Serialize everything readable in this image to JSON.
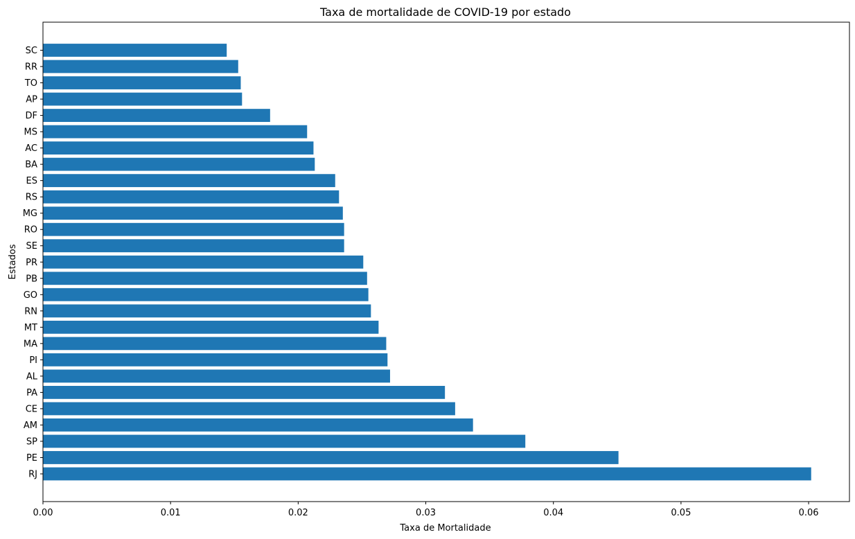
{
  "chart_data": {
    "type": "bar",
    "orientation": "horizontal",
    "title": "Taxa de mortalidade de COVID-19 por estado",
    "xlabel": "Taxa de Mortalidade",
    "ylabel": "Estados",
    "xlim": [
      0,
      0.0632
    ],
    "xticks": [
      "0.00",
      "0.01",
      "0.02",
      "0.03",
      "0.04",
      "0.05",
      "0.06"
    ],
    "bar_color": "#1f77b4",
    "grid": false,
    "categories": [
      "RJ",
      "PE",
      "SP",
      "AM",
      "CE",
      "PA",
      "AL",
      "PI",
      "MA",
      "MT",
      "RN",
      "GO",
      "PB",
      "PR",
      "SE",
      "RO",
      "MG",
      "RS",
      "ES",
      "BA",
      "AC",
      "MS",
      "DF",
      "AP",
      "TO",
      "RR",
      "SC"
    ],
    "values": [
      0.0602,
      0.0451,
      0.0378,
      0.0337,
      0.0323,
      0.0315,
      0.0272,
      0.027,
      0.0269,
      0.0263,
      0.0257,
      0.0255,
      0.0254,
      0.0251,
      0.0236,
      0.0236,
      0.0235,
      0.0232,
      0.0229,
      0.0213,
      0.0212,
      0.0207,
      0.0178,
      0.0156,
      0.0155,
      0.0153,
      0.0144
    ]
  }
}
